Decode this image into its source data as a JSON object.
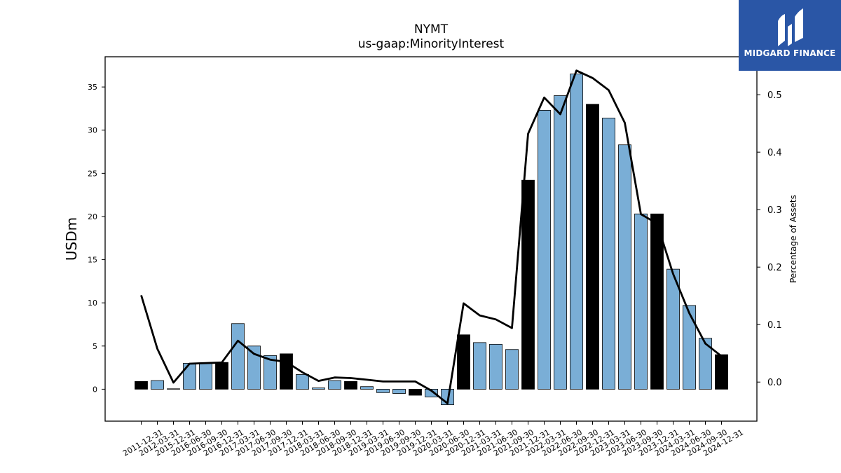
{
  "title": "NYMT",
  "subtitle": "us-gaap:MinorityInterest",
  "logo": {
    "text": "MIDGARD FINANCE",
    "bg_color": "#2a56a6"
  },
  "colors": {
    "bar_regular": "#7aaed6",
    "bar_year_end": "#000000",
    "line": "#000000"
  },
  "chart_data": {
    "type": "bar",
    "title": "NYMT",
    "subtitle": "us-gaap:MinorityInterest",
    "ylabel": "USDm",
    "y2label": "Percentage of Assets",
    "ylim": [
      -3.7,
      38.5
    ],
    "y2lim": [
      -0.068,
      0.566
    ],
    "yticks": [
      0,
      5,
      10,
      15,
      20,
      25,
      30,
      35
    ],
    "y2ticks": [
      0.0,
      0.1,
      0.2,
      0.3,
      0.4,
      0.5
    ],
    "y2ticklabels": [
      "0.0",
      "0.1",
      "0.2",
      "0.3",
      "0.4",
      "0.5"
    ],
    "categories": [
      "2011-12-31",
      "2012-03-31",
      "2015-12-31",
      "2016-06-30",
      "2016-09-30",
      "2016-12-31",
      "2017-03-31",
      "2017-06-30",
      "2017-09-30",
      "2017-12-31",
      "2018-03-31",
      "2018-06-30",
      "2018-09-30",
      "2018-12-31",
      "2019-03-31",
      "2019-06-30",
      "2019-09-30",
      "2019-12-31",
      "2020-03-31",
      "2020-06-30",
      "2020-12-31",
      "2021-03-31",
      "2021-06-30",
      "2021-09-30",
      "2021-12-31",
      "2022-03-31",
      "2022-06-30",
      "2022-09-30",
      "2022-12-31",
      "2023-03-31",
      "2023-06-30",
      "2023-09-30",
      "2023-12-31",
      "2024-03-31",
      "2024-06-30",
      "2024-09-30",
      "2024-12-31"
    ],
    "series": [
      {
        "values": [
          0.9,
          1.0,
          0.05,
          3.0,
          3.0,
          3.1,
          7.6,
          5.0,
          3.9,
          4.1,
          1.7,
          0.15,
          1.0,
          0.9,
          0.3,
          -0.4,
          -0.5,
          -0.7,
          -0.9,
          -1.8,
          6.3,
          5.4,
          5.2,
          4.6,
          24.2,
          32.3,
          34.0,
          36.5,
          33.0,
          31.4,
          28.3,
          20.3,
          20.3,
          13.9,
          9.7,
          5.9,
          4.0
        ]
      },
      {
        "values": [
          0.151,
          0.058,
          -0.001,
          0.032,
          0.033,
          0.034,
          0.072,
          0.049,
          0.039,
          0.035,
          0.017,
          0.002,
          0.008,
          0.007,
          0.004,
          0.001,
          0.001,
          0.001,
          -0.015,
          -0.037,
          0.137,
          0.116,
          0.109,
          0.094,
          0.432,
          0.495,
          0.466,
          0.542,
          0.529,
          0.508,
          0.451,
          0.292,
          0.276,
          0.188,
          0.12,
          0.067,
          0.045
        ]
      }
    ],
    "year_end_highlight": true,
    "grid": false
  }
}
